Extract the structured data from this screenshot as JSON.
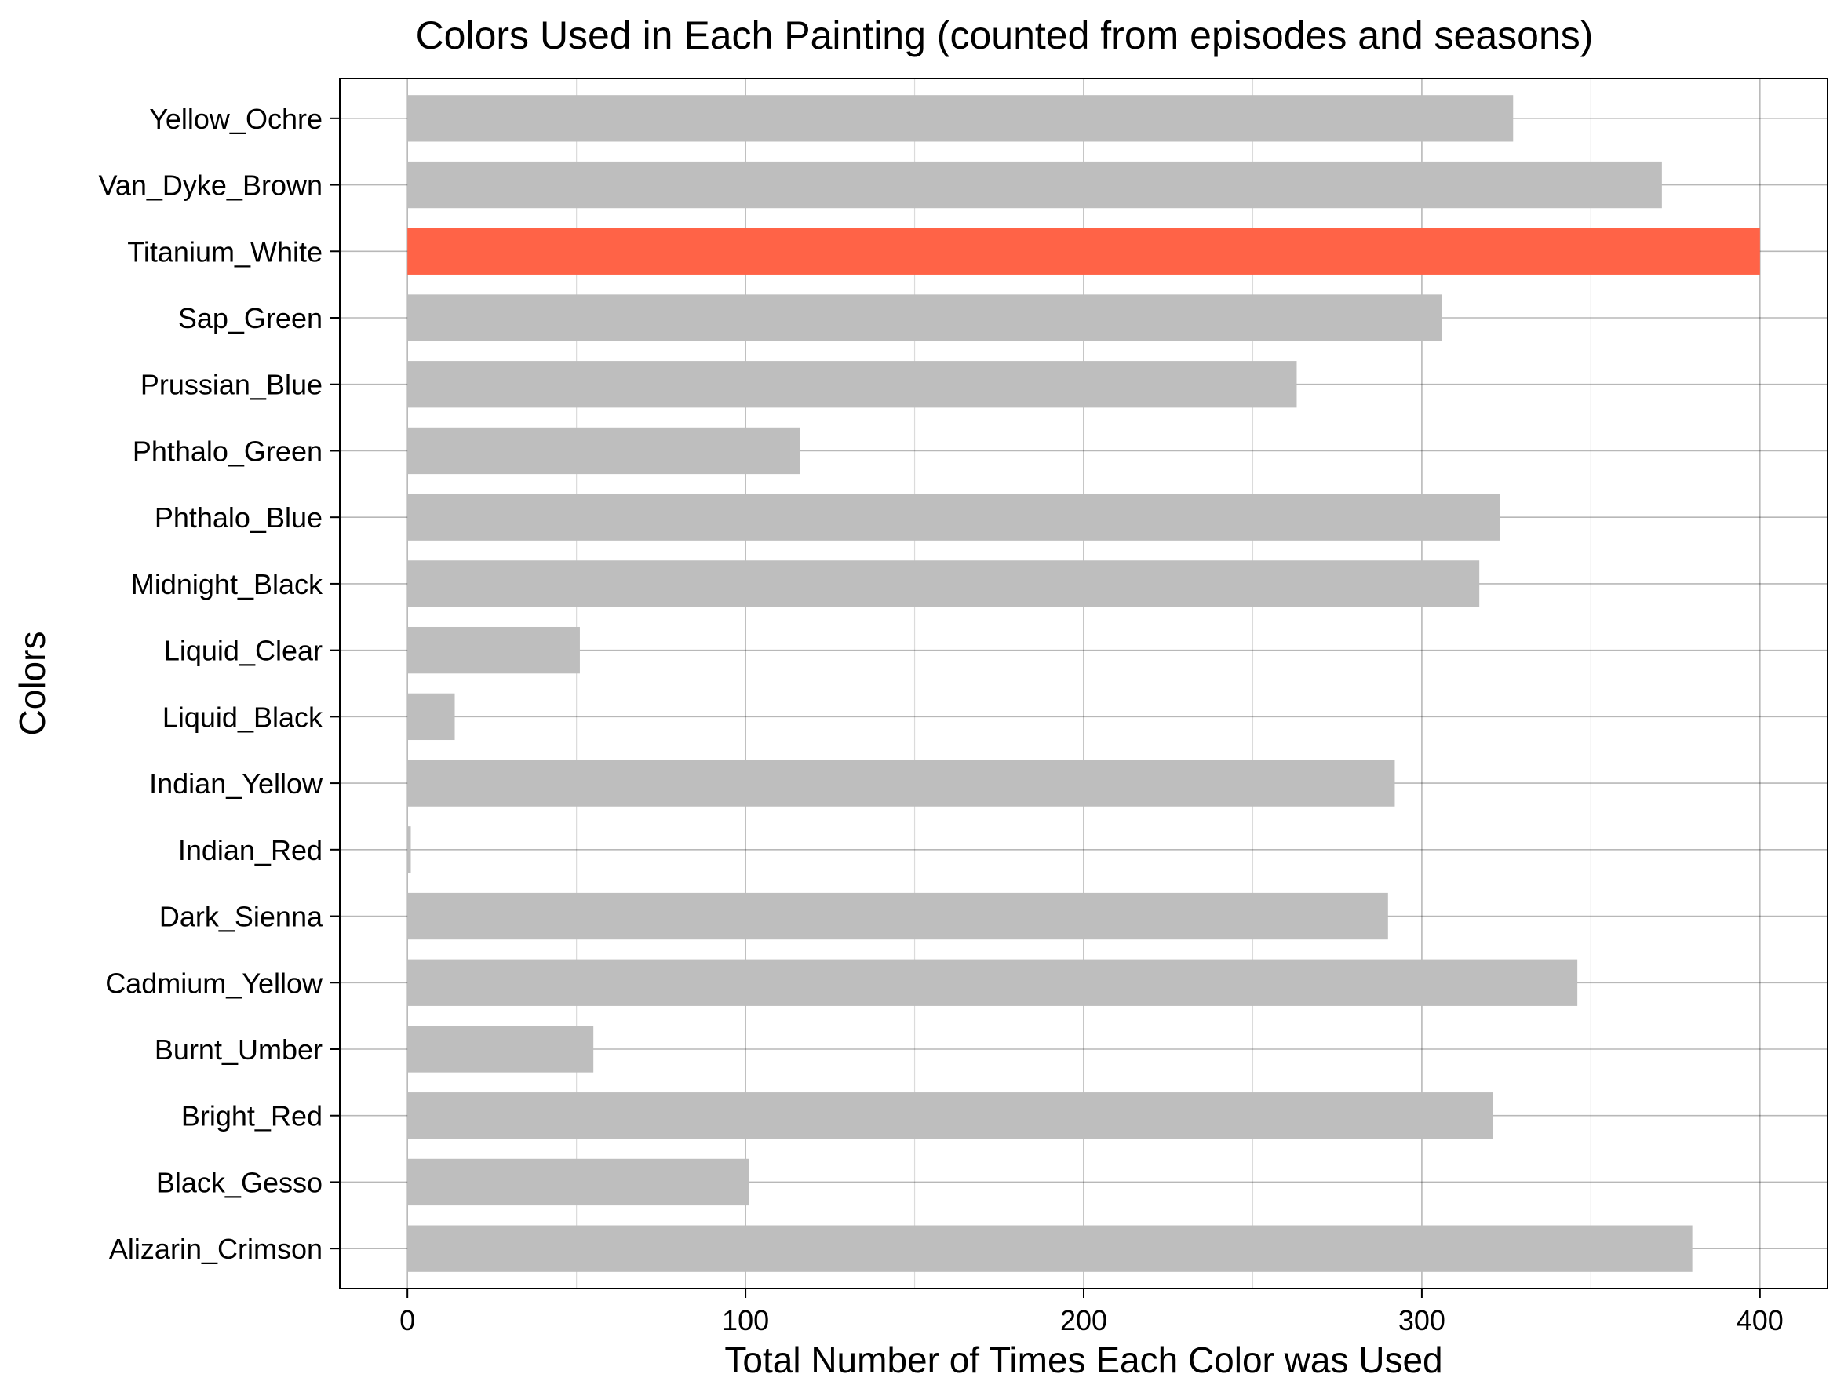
{
  "chart_data": {
    "type": "bar",
    "orientation": "horizontal",
    "title": "Colors Used in Each Painting (counted from episodes and seasons)",
    "xlabel": "Total Number of Times Each Color was Used",
    "ylabel": "Colors",
    "xlim": [
      -20,
      420
    ],
    "xticks": [
      0,
      100,
      200,
      300,
      400
    ],
    "grid": true,
    "categories": [
      "Alizarin_Crimson",
      "Black_Gesso",
      "Bright_Red",
      "Burnt_Umber",
      "Cadmium_Yellow",
      "Dark_Sienna",
      "Indian_Red",
      "Indian_Yellow",
      "Liquid_Black",
      "Liquid_Clear",
      "Midnight_Black",
      "Phthalo_Blue",
      "Phthalo_Green",
      "Prussian_Blue",
      "Sap_Green",
      "Titanium_White",
      "Van_Dyke_Brown",
      "Yellow_Ochre"
    ],
    "values": [
      380,
      101,
      321,
      55,
      346,
      290,
      1,
      292,
      14,
      51,
      317,
      323,
      116,
      263,
      306,
      400,
      371,
      327
    ],
    "bar_color": "#bebebe",
    "highlight_category": "Titanium_White",
    "highlight_color": "#ff6347"
  }
}
